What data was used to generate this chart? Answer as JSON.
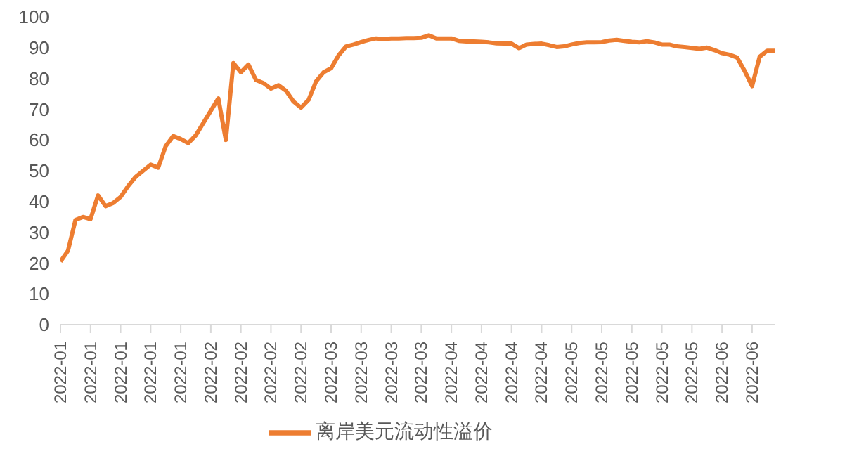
{
  "chart_data": {
    "type": "line",
    "categories": [
      "2022-01",
      null,
      null,
      null,
      "2022-01",
      null,
      null,
      null,
      "2022-01",
      null,
      null,
      null,
      "2022-01",
      null,
      null,
      null,
      "2022-01",
      null,
      null,
      null,
      "2022-02",
      null,
      null,
      null,
      "2022-02",
      null,
      null,
      null,
      "2022-02",
      null,
      null,
      null,
      "2022-02",
      null,
      null,
      null,
      "2022-03",
      null,
      null,
      null,
      "2022-03",
      null,
      null,
      null,
      "2022-03",
      null,
      null,
      null,
      "2022-03",
      null,
      null,
      null,
      "2022-04",
      null,
      null,
      null,
      "2022-04",
      null,
      null,
      null,
      "2022-04",
      null,
      null,
      null,
      "2022-04",
      null,
      null,
      null,
      "2022-05",
      null,
      null,
      null,
      "2022-05",
      null,
      null,
      null,
      "2022-05",
      null,
      null,
      null,
      "2022-05",
      null,
      null,
      null,
      "2022-05",
      null,
      null,
      null,
      "2022-06",
      null,
      null,
      null,
      "2022-06",
      null,
      null,
      null
    ],
    "series": [
      {
        "name": "离岸美元流动性溢价",
        "color": "#ed7d31",
        "values": [
          20.5,
          24,
          34,
          35,
          34.3,
          42,
          38.5,
          39.5,
          41.5,
          45,
          48,
          50,
          52,
          51,
          58,
          61.3,
          60.3,
          59,
          61.5,
          65.5,
          69.5,
          73.5,
          60,
          85,
          82,
          84.5,
          79.5,
          78.5,
          76.7,
          77.8,
          76,
          72.5,
          70.5,
          73,
          79,
          82,
          83.3,
          87.5,
          90.4,
          91,
          91.8,
          92.5,
          93,
          92.8,
          93,
          93,
          93.1,
          93.1,
          93.2,
          94,
          93,
          93,
          93,
          92.2,
          92,
          92,
          91.9,
          91.7,
          91.4,
          91.3,
          91.3,
          89.8,
          91,
          91.2,
          91.3,
          90.8,
          90.2,
          90.4,
          91,
          91.5,
          91.7,
          91.7,
          91.8,
          92.3,
          92.5,
          92.2,
          91.9,
          91.7,
          92.1,
          91.7,
          91,
          91,
          90.4,
          90.2,
          89.9,
          89.6,
          90,
          89.2,
          88.2,
          87.7,
          86.8,
          82.5,
          77.5,
          87,
          89,
          89
        ]
      }
    ],
    "ylim": [
      0,
      100
    ],
    "yticks": [
      0,
      10,
      20,
      30,
      40,
      50,
      60,
      70,
      80,
      90,
      100
    ],
    "grid": false,
    "legend": "bottom",
    "marker": "none",
    "line_style": "solid"
  }
}
